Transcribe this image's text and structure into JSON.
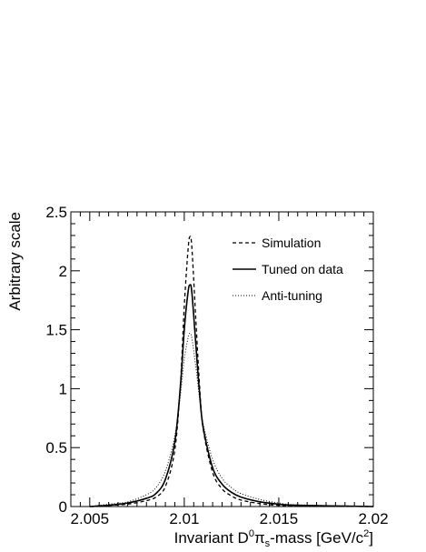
{
  "chart_data": {
    "type": "line",
    "xlabel": "Invariant D⁰πs-mass [GeV/c²]",
    "xlabel_parts": {
      "main": "Invariant D",
      "sup1": "0",
      "pi": "π",
      "sub": "s",
      "mass": "-mass [GeV/c",
      "sup2": "2",
      "close": "]"
    },
    "ylabel": "Arbitrary scale",
    "xlim": [
      2.004,
      2.02
    ],
    "ylim": [
      0,
      2.5
    ],
    "x_ticks": [
      2.005,
      2.01,
      2.015,
      2.02
    ],
    "x_tick_labels": [
      "2.005",
      "2.01",
      "2.015",
      "2.02"
    ],
    "y_ticks": [
      0,
      0.5,
      1,
      1.5,
      2,
      2.5
    ],
    "y_tick_labels": [
      "0",
      "0.5",
      "1",
      "1.5",
      "2",
      "2.5"
    ],
    "legend_position": "top-right",
    "grid": false,
    "series": [
      {
        "name": "Simulation",
        "style": "dashed",
        "peak_x": 2.0103,
        "peak_y": 2.29,
        "x": [
          2.005,
          2.006,
          2.007,
          2.008,
          2.0085,
          2.009,
          2.0095,
          2.0098,
          2.01,
          2.0102,
          2.0103,
          2.0104,
          2.0106,
          2.0108,
          2.011,
          2.0115,
          2.012,
          2.0125,
          2.013,
          2.014,
          2.015,
          2.016,
          2.02
        ],
        "y": [
          0.0,
          0.01,
          0.02,
          0.05,
          0.08,
          0.17,
          0.48,
          1.05,
          1.7,
          2.18,
          2.29,
          2.2,
          1.62,
          1.05,
          0.66,
          0.29,
          0.15,
          0.09,
          0.055,
          0.025,
          0.01,
          0.005,
          0.0
        ]
      },
      {
        "name": "Tuned on data",
        "style": "solid",
        "peak_x": 2.0103,
        "peak_y": 1.88,
        "x": [
          2.005,
          2.006,
          2.007,
          2.008,
          2.0085,
          2.009,
          2.0095,
          2.0098,
          2.01,
          2.0102,
          2.0103,
          2.0104,
          2.0106,
          2.0108,
          2.011,
          2.0115,
          2.012,
          2.0125,
          2.013,
          2.014,
          2.015,
          2.016,
          2.02
        ],
        "y": [
          0.0,
          0.01,
          0.03,
          0.07,
          0.11,
          0.23,
          0.55,
          1.03,
          1.5,
          1.82,
          1.88,
          1.82,
          1.4,
          0.98,
          0.67,
          0.33,
          0.19,
          0.12,
          0.08,
          0.04,
          0.02,
          0.01,
          0.0
        ]
      },
      {
        "name": "Anti-tuning",
        "style": "dotted",
        "peak_x": 2.0103,
        "peak_y": 1.47,
        "x": [
          2.005,
          2.006,
          2.007,
          2.008,
          2.0085,
          2.009,
          2.0095,
          2.0098,
          2.01,
          2.0102,
          2.0103,
          2.0104,
          2.0106,
          2.0108,
          2.011,
          2.0115,
          2.012,
          2.0125,
          2.013,
          2.014,
          2.015,
          2.016,
          2.02
        ],
        "y": [
          0.0,
          0.02,
          0.04,
          0.1,
          0.16,
          0.3,
          0.6,
          0.95,
          1.25,
          1.43,
          1.47,
          1.43,
          1.2,
          0.93,
          0.7,
          0.4,
          0.24,
          0.16,
          0.11,
          0.06,
          0.03,
          0.015,
          0.0
        ]
      }
    ]
  }
}
